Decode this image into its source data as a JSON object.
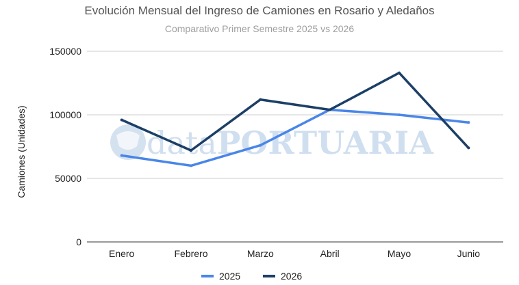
{
  "chart_data": {
    "type": "line",
    "title": "Evolución Mensual del Ingreso de Camiones en Rosario y Aledaños",
    "subtitle": "Comparativo Primer Semestre 2025 vs 2026",
    "xlabel": "",
    "ylabel": "Camiones (Unidades)",
    "categories": [
      "Enero",
      "Febrero",
      "Marzo",
      "Abril",
      "Mayo",
      "Junio"
    ],
    "ylim": [
      0,
      150000
    ],
    "yticks": [
      0,
      50000,
      100000,
      150000
    ],
    "grid": true,
    "legend": "bottom",
    "series": [
      {
        "name": "2025",
        "color": "#4a86e8",
        "values": [
          68000,
          60000,
          76000,
          104000,
          100000,
          94000
        ]
      },
      {
        "name": "2026",
        "color": "#1c3f66",
        "values": [
          96000,
          72000,
          112000,
          104000,
          133000,
          74000
        ]
      }
    ]
  },
  "watermark": {
    "text_light": "data",
    "text_bold": "PORTUARIA",
    "color": "#aac6e2",
    "icon": "port-logo-icon"
  }
}
